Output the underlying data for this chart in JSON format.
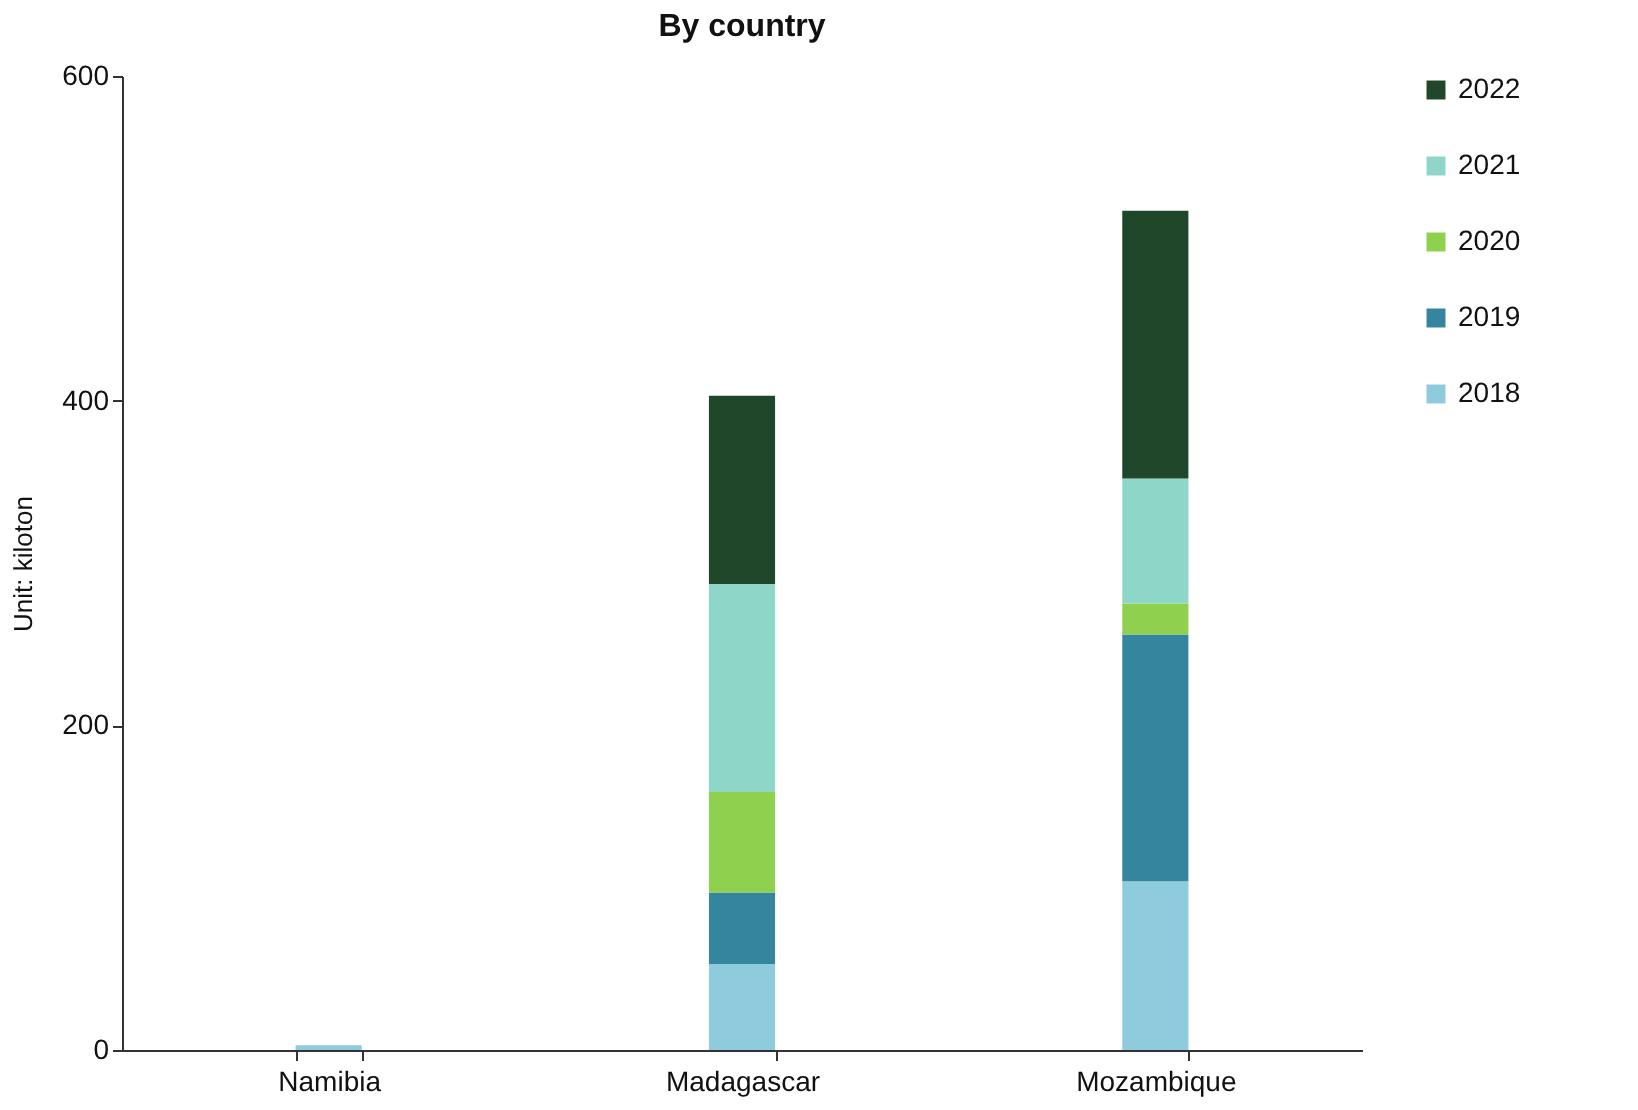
{
  "chart_data": {
    "type": "bar",
    "title": "By country",
    "ylabel": "Unit: kiloton",
    "categories": [
      "Namibia",
      "Madagascar",
      "Mozambique"
    ],
    "stacked": true,
    "series": [
      {
        "name": "2018",
        "color": "#8ecbdc",
        "values": [
          3,
          53,
          104
        ]
      },
      {
        "name": "2019",
        "color": "#35859f",
        "values": [
          0,
          44,
          152
        ]
      },
      {
        "name": "2020",
        "color": "#8fd14f",
        "values": [
          0,
          62,
          19
        ]
      },
      {
        "name": "2021",
        "color": "#8dd6c8",
        "values": [
          0,
          128,
          77
        ]
      },
      {
        "name": "2022",
        "color": "#21472b",
        "values": [
          0,
          116,
          165
        ]
      }
    ],
    "ylim": [
      0,
      600
    ],
    "yticks": [
      0,
      200,
      400,
      600
    ],
    "grid": false,
    "legend": "right"
  }
}
